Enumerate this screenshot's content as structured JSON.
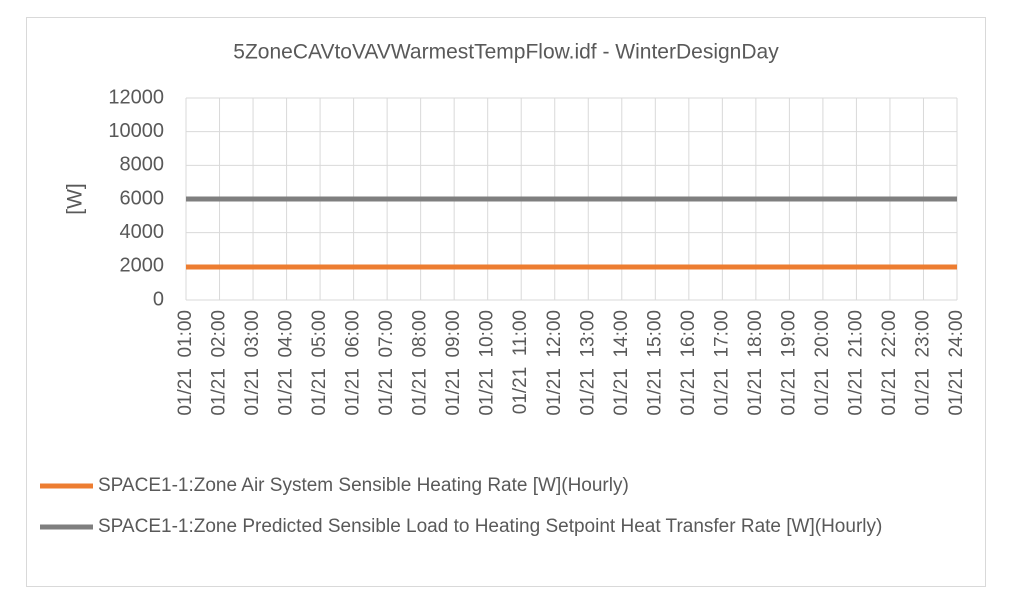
{
  "chart_data": {
    "type": "line",
    "title": "5ZoneCAVtoVAVWarmestTempFlow.idf - WinterDesignDay",
    "ylabel": "[W]",
    "categories": [
      "01/21  01:00",
      "01/21  02:00",
      "01/21  03:00",
      "01/21  04:00",
      "01/21  05:00",
      "01/21  06:00",
      "01/21  07:00",
      "01/21  08:00",
      "01/21  09:00",
      "01/21  10:00",
      "01/21  11:00",
      "01/21  12:00",
      "01/21  13:00",
      "01/21  14:00",
      "01/21  15:00",
      "01/21  16:00",
      "01/21  17:00",
      "01/21  18:00",
      "01/21  19:00",
      "01/21  20:00",
      "01/21  21:00",
      "01/21  22:00",
      "01/21  23:00",
      "01/21  24:00"
    ],
    "series": [
      {
        "name": "SPACE1-1:Zone Air System Sensible Heating Rate [W](Hourly)",
        "color": "#ed7d31",
        "values": [
          1960,
          1960,
          1960,
          1960,
          1960,
          1960,
          1960,
          1960,
          1960,
          1960,
          1960,
          1960,
          1960,
          1960,
          1960,
          1960,
          1960,
          1960,
          1960,
          1960,
          1960,
          1960,
          1960,
          1960
        ]
      },
      {
        "name": "SPACE1-1:Zone Predicted Sensible Load to Heating Setpoint Heat Transfer Rate [W](Hourly)",
        "color": "#7f7f7f",
        "values": [
          6000,
          6000,
          6000,
          6000,
          6000,
          6000,
          6000,
          6000,
          6000,
          6000,
          6000,
          6000,
          6000,
          6000,
          6000,
          6000,
          6000,
          6000,
          6000,
          6000,
          6000,
          6000,
          6000,
          6000
        ]
      }
    ],
    "ylim": [
      0,
      12000
    ],
    "yticks": [
      0,
      2000,
      4000,
      6000,
      8000,
      10000,
      12000
    ],
    "grid": true,
    "legend": "bottom"
  }
}
